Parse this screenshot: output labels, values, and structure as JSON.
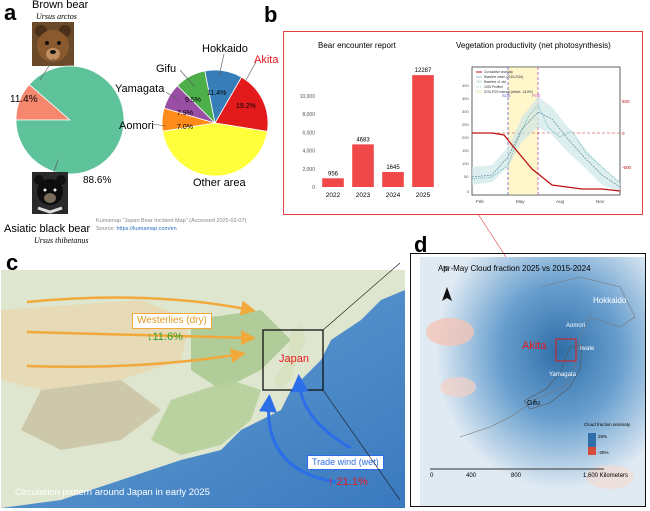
{
  "panel_a": {
    "letter": "a",
    "brown_bear": {
      "name": "Brown bear",
      "latin": "Ursus arctos",
      "pct": "11.4%"
    },
    "black_bear": {
      "name": "Asiatic black bear",
      "latin": "Ursus thibetanus",
      "pct": "88.6%"
    },
    "species_pie": [
      {
        "label": "Brown bear",
        "value": 11.4,
        "color": "#f4876e"
      },
      {
        "label": "Asiatic black bear",
        "value": 88.6,
        "color": "#5ec29b"
      }
    ],
    "region_pie": [
      {
        "label": "Akita",
        "value": 19.2,
        "pct": "19.2%",
        "color": "#e31a1c"
      },
      {
        "label": "Other area",
        "value": 45.0,
        "pct": "",
        "color": "#ffff3c"
      },
      {
        "label": "Aomori",
        "value": 7.0,
        "pct": "7.0%",
        "color": "#ff8c1a"
      },
      {
        "label": "Yamagata",
        "value": 7.9,
        "pct": "7.9%",
        "color": "#984ea3"
      },
      {
        "label": "Gifu",
        "value": 9.5,
        "pct": "9.5%",
        "color": "#4daf4a"
      },
      {
        "label": "Hokkaido",
        "value": 11.4,
        "pct": "11.4%",
        "color": "#377eb8"
      }
    ],
    "source_line1": "Kumamap \"Japan Bear Incident Map\" (Accessed 2025-02-07)",
    "source_line2_prefix": "Source: ",
    "source_line2_link": "https://kumamap.com/en"
  },
  "panel_b": {
    "letter": "b",
    "bar_title": "Bear encounter report",
    "veg_title": "Vegetation productivity (net photosynthesis)",
    "chart_data": [
      {
        "type": "bar",
        "title": "Bear encounter report",
        "categories": [
          "2022",
          "2023",
          "2024",
          "2025"
        ],
        "values": [
          956,
          4683,
          1645,
          12287
        ],
        "value_labels": [
          "956",
          "4683",
          "1645",
          "12287"
        ],
        "yticks": [
          "0",
          "2,000",
          "4,000",
          "6,000",
          "8,000",
          "10,000"
        ],
        "ylim": [
          0,
          12300
        ],
        "color": "#f04848"
      },
      {
        "type": "line",
        "title": "Vegetation productivity (net photosynthesis)",
        "xticks": [
          "Feb",
          "May",
          "Aug",
          "Nov"
        ],
        "legend": [
          "Cumulative anomaly",
          "Baseline mean (2015-2024)",
          "Baseline ±1 std",
          "2025 Profiled",
          "SOS-POS interval (deficit: -24.8%)"
        ],
        "yticks_left": [
          "0",
          "50",
          "100",
          "150",
          "200",
          "250",
          "300",
          "350",
          "400"
        ],
        "yticks_right": [
          "500",
          "0",
          "-500"
        ],
        "annotations": [
          "SOS",
          "POS"
        ]
      }
    ]
  },
  "panel_c": {
    "letter": "c",
    "westerlies": "Westerlies (dry)",
    "westerlies_change": "↓11.6%",
    "japan": "Japan",
    "trade_wind": "Trade wind (wet)",
    "trade_change": "↑ 21.1%",
    "caption": "Circulation pattern around Japan in early 2025"
  },
  "panel_d": {
    "letter": "d",
    "title": "Apr-May Cloud fraction 2025 vs 2015-2024",
    "north": "N",
    "places": {
      "hokkaido": "Hokkaido",
      "aomori": "Aomori",
      "akita": "Akita",
      "iwate": "Iwate",
      "yamagata": "Yamagata",
      "gifu": "Gifu"
    },
    "legend_title": "Cloud fraction anomaly",
    "legend_high": "25%",
    "legend_low": "-25%",
    "scale": [
      "0",
      "400",
      "800",
      "1,600 Kilometers"
    ]
  }
}
